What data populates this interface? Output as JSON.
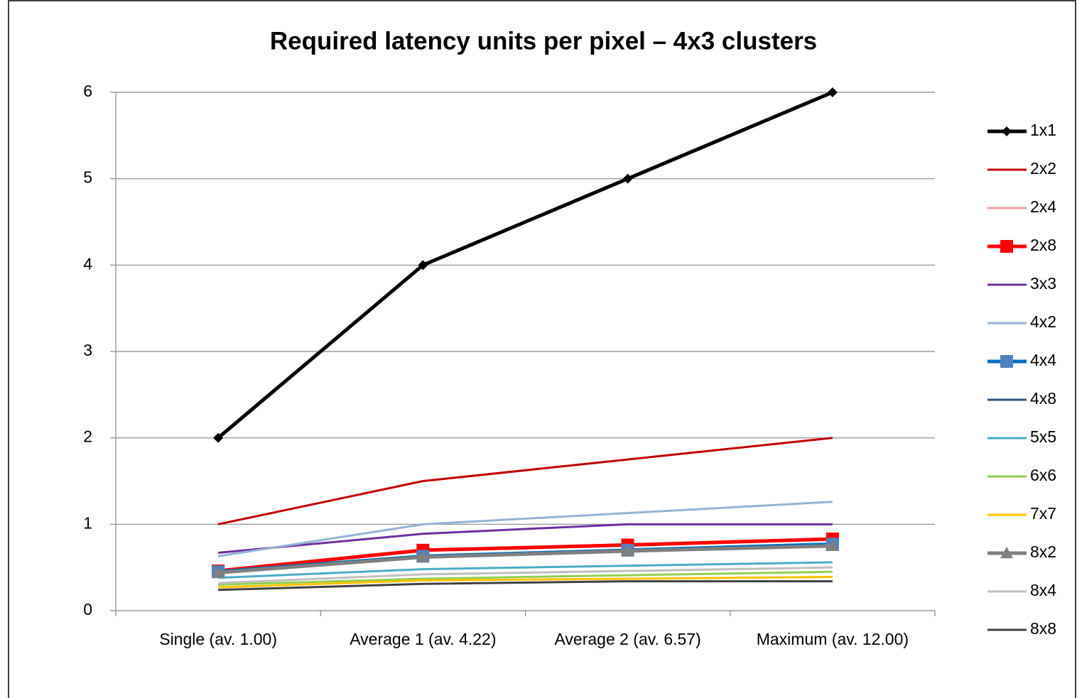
{
  "chart_data": {
    "type": "line",
    "title": "Required latency units per pixel – 4x3 clusters",
    "categories": [
      "Single (av. 1.00)",
      "Average 1 (av. 4.22)",
      "Average 2 (av. 6.57)",
      "Maximum (av. 12.00)"
    ],
    "ylim": [
      0,
      6
    ],
    "yticks": [
      0,
      1,
      2,
      3,
      4,
      5,
      6
    ],
    "grid": true,
    "legend": "right",
    "series": [
      {
        "name": "1x1",
        "color": "#000000",
        "marker": "diamond",
        "values": [
          2,
          4,
          5,
          6
        ]
      },
      {
        "name": "2x2",
        "color": "#c00000",
        "values": [
          1,
          1.5,
          1.75,
          2
        ]
      },
      {
        "name": "2x4",
        "color": "#e6a0a0",
        "values": [
          0.45,
          0.63,
          0.7,
          0.76
        ]
      },
      {
        "name": "2x8",
        "color": "#ff0000",
        "marker": "square",
        "values": [
          0.46,
          0.7,
          0.76,
          0.83
        ]
      },
      {
        "name": "3x3",
        "color": "#7030a0",
        "values": [
          0.67,
          0.89,
          1,
          1
        ]
      },
      {
        "name": "4x2",
        "color": "#95b3d7",
        "values": [
          0.63,
          1,
          1.13,
          1.26
        ]
      },
      {
        "name": "4x4",
        "color": "#0070c0",
        "marker": "square",
        "marker_color": "#4f81bd",
        "values": [
          0.45,
          0.63,
          0.7,
          0.77
        ]
      },
      {
        "name": "4x8",
        "color": "#2f5580",
        "values": [
          0.44,
          0.62,
          0.69,
          0.75
        ]
      },
      {
        "name": "5x5",
        "color": "#4bacc6",
        "values": [
          0.38,
          0.48,
          0.52,
          0.56
        ]
      },
      {
        "name": "6x6",
        "color": "#92d050",
        "values": [
          0.3,
          0.37,
          0.41,
          0.45
        ]
      },
      {
        "name": "7x7",
        "color": "#ffc000",
        "values": [
          0.27,
          0.35,
          0.37,
          0.39
        ]
      },
      {
        "name": "8x2",
        "color": "#808080",
        "marker": "triangle",
        "values": [
          0.44,
          0.62,
          0.69,
          0.75
        ]
      },
      {
        "name": "8x4",
        "color": "#bfbfbf",
        "values": [
          0.32,
          0.42,
          0.46,
          0.5
        ]
      },
      {
        "name": "8x8",
        "color": "#404040",
        "values": [
          0.24,
          0.31,
          0.34,
          0.34
        ]
      }
    ]
  }
}
